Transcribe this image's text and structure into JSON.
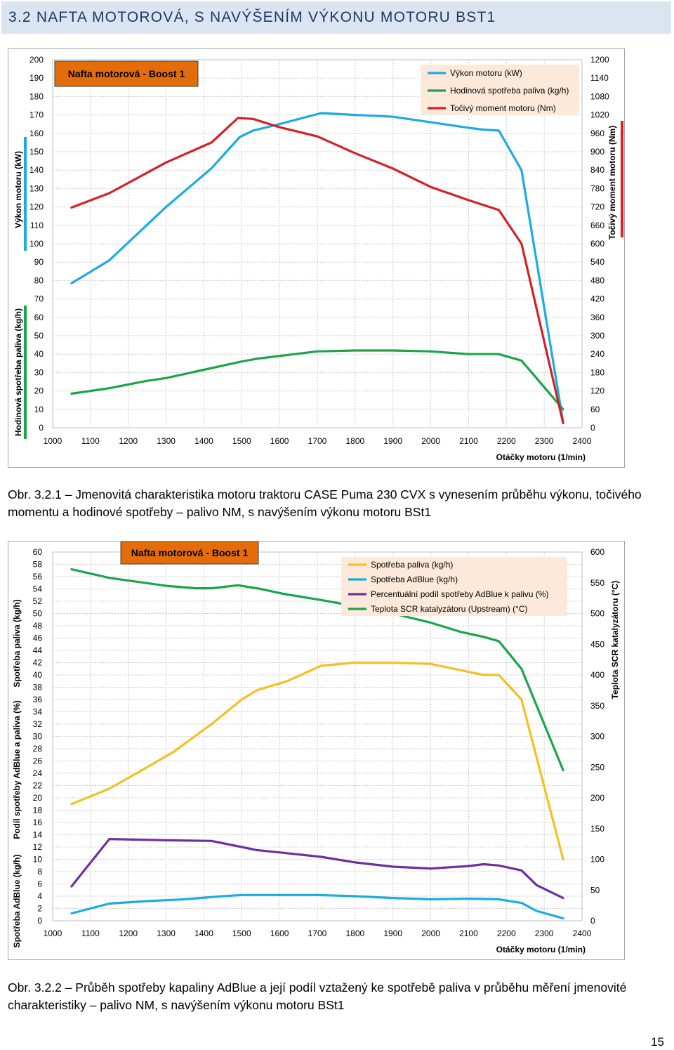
{
  "section": {
    "title": "3.2 NAFTA MOTOROVÁ, S NAVÝŠENÍM VÝKONU MOTORU BST1"
  },
  "captions": {
    "figure1": "Obr. 3.2.1 – Jmenovitá charakteristika motoru traktoru CASE Puma 230 CVX s vynesením průběhu výkonu, točivého momentu a hodinové spotřeby – palivo NM, s navýšením výkonu motoru BSt1",
    "figure2": "Obr. 3.2.2 – Průběh spotřeby kapaliny AdBlue a její podíl vztažený ke spotřebě paliva v průběhu měření jmenovité charakteristiky – palivo NM, s navýšením výkonu motoru BSt1"
  },
  "page": {
    "number": "15"
  },
  "colors": {
    "blue": "#1cabe2",
    "green": "#1aa54a",
    "red": "#d71f26",
    "yellow": "#f4c022",
    "purple": "#6f2fa0",
    "orange": "#e46c0a",
    "legend_bg": "#fde9d9",
    "grid": "#c8c8c8"
  },
  "chart_data": [
    {
      "type": "line",
      "title": "Nafta motorová - Boost 1",
      "xlabel": "Otáčky motoru (1/min)",
      "x_range": [
        1000,
        2400
      ],
      "x_ticks": [
        1000,
        1100,
        1200,
        1300,
        1400,
        1500,
        1600,
        1700,
        1800,
        1900,
        2000,
        2100,
        2200,
        2300,
        2400
      ],
      "left_axis": {
        "range": [
          0,
          200
        ],
        "ticks": [
          0,
          10,
          20,
          30,
          40,
          50,
          60,
          70,
          80,
          90,
          100,
          110,
          120,
          130,
          140,
          150,
          160,
          170,
          180,
          190,
          200
        ]
      },
      "right_axis": {
        "range": [
          0,
          1200
        ],
        "ticks": [
          0,
          60,
          120,
          180,
          240,
          300,
          360,
          420,
          480,
          540,
          600,
          660,
          720,
          780,
          840,
          900,
          960,
          1020,
          1080,
          1140,
          1200
        ],
        "label": "Točivý moment motoru (Nm)"
      },
      "left_labels": [
        "Výkon motoru (kW)",
        "Hodinová spotřeba paliva (kg/h)"
      ],
      "grid": true,
      "legend_position": "top-right",
      "series": [
        {
          "name": "Výkon motoru (kW)",
          "color": "#1cabe2",
          "axis": "left",
          "x": [
            1050,
            1150,
            1300,
            1420,
            1495,
            1530,
            1600,
            1710,
            1800,
            1900,
            2000,
            2100,
            2140,
            2180,
            2240,
            2350
          ],
          "y": [
            78.5,
            91,
            120,
            141,
            158,
            161.5,
            165,
            171,
            170,
            169,
            166,
            163,
            162,
            161.5,
            140,
            3
          ]
        },
        {
          "name": "Hodinová spotřeba paliva (kg/h)",
          "color": "#1aa54a",
          "axis": "left",
          "x": [
            1050,
            1150,
            1250,
            1300,
            1400,
            1500,
            1540,
            1600,
            1700,
            1800,
            1900,
            2000,
            2100,
            2180,
            2240,
            2350
          ],
          "y": [
            18.5,
            21.5,
            25.5,
            27,
            31.5,
            36,
            37.5,
            39,
            41.5,
            42,
            42,
            41.5,
            40,
            40,
            36.5,
            10
          ]
        },
        {
          "name": "Točivý moment motoru (Nm)",
          "color": "#d71f26",
          "axis": "right",
          "x": [
            1050,
            1150,
            1300,
            1420,
            1490,
            1530,
            1600,
            1700,
            1800,
            1900,
            2000,
            2100,
            2180,
            2240,
            2350
          ],
          "y": [
            718,
            765,
            865,
            930,
            1010,
            1007,
            980,
            950,
            895,
            845,
            785,
            742,
            710,
            600,
            15
          ]
        }
      ]
    },
    {
      "type": "line",
      "title": "Nafta motorová - Boost 1",
      "xlabel": "Otáčky motoru (1/min)",
      "x_range": [
        1000,
        2400
      ],
      "x_ticks": [
        1000,
        1100,
        1200,
        1300,
        1400,
        1500,
        1600,
        1700,
        1800,
        1900,
        2000,
        2100,
        2200,
        2300,
        2400
      ],
      "left_axis": {
        "range": [
          0,
          60
        ],
        "ticks": [
          0,
          2,
          4,
          6,
          8,
          10,
          12,
          14,
          16,
          18,
          20,
          22,
          24,
          26,
          28,
          30,
          32,
          34,
          36,
          38,
          40,
          42,
          44,
          46,
          48,
          50,
          52,
          54,
          56,
          58,
          60
        ]
      },
      "right_axis": {
        "range": [
          0,
          600
        ],
        "ticks": [
          0,
          50,
          100,
          150,
          200,
          250,
          300,
          350,
          400,
          450,
          500,
          550,
          600
        ],
        "label": "Teplota SCR katalyzátoru (°C)"
      },
      "left_labels": [
        "Spotřeba AdBlue (kg/h)",
        "Podíl spotřeby AdBlue a paliva (%)",
        "Spotřeba paliva (kg/h)"
      ],
      "grid": true,
      "legend_position": "top-right",
      "series": [
        {
          "name": "Spotřeba paliva (kg/h)",
          "color": "#f4c022",
          "axis": "left",
          "x": [
            1050,
            1150,
            1250,
            1320,
            1420,
            1500,
            1540,
            1620,
            1710,
            1800,
            1900,
            2000,
            2100,
            2140,
            2180,
            2240,
            2350
          ],
          "y": [
            19,
            21.5,
            25,
            27.5,
            32,
            36,
            37.5,
            39,
            41.5,
            42,
            42,
            41.8,
            40.5,
            40,
            40,
            36,
            10
          ]
        },
        {
          "name": "Spotřeba AdBlue (kg/h)",
          "color": "#1cabe2",
          "axis": "left",
          "x": [
            1050,
            1150,
            1250,
            1350,
            1450,
            1500,
            1600,
            1700,
            1800,
            1900,
            2000,
            2100,
            2180,
            2240,
            2280,
            2350
          ],
          "y": [
            1.2,
            2.8,
            3.2,
            3.5,
            4,
            4.2,
            4.2,
            4.2,
            4,
            3.7,
            3.5,
            3.6,
            3.5,
            2.9,
            1.6,
            0.4
          ]
        },
        {
          "name": "Percentuální podíl spotřeby AdBlue k palivu (%)",
          "color": "#6f2fa0",
          "axis": "left",
          "x": [
            1050,
            1150,
            1300,
            1420,
            1500,
            1540,
            1620,
            1710,
            1800,
            1900,
            2000,
            2100,
            2140,
            2180,
            2240,
            2280,
            2350
          ],
          "y": [
            5.6,
            13.3,
            13.1,
            13,
            12,
            11.5,
            11,
            10.4,
            9.5,
            8.8,
            8.5,
            8.9,
            9.2,
            9,
            8.2,
            5.8,
            3.7
          ]
        },
        {
          "name": "Teplota SCR katalyzátoru (Upstream) (°C)",
          "color": "#1aa54a",
          "axis": "right",
          "x": [
            1050,
            1150,
            1300,
            1380,
            1420,
            1490,
            1550,
            1610,
            1710,
            1800,
            1900,
            2000,
            2080,
            2140,
            2180,
            2240,
            2350
          ],
          "y": [
            572,
            558,
            545,
            541,
            541,
            546,
            540,
            532,
            522,
            512,
            500,
            485,
            470,
            462,
            455,
            410,
            245
          ]
        }
      ]
    }
  ]
}
